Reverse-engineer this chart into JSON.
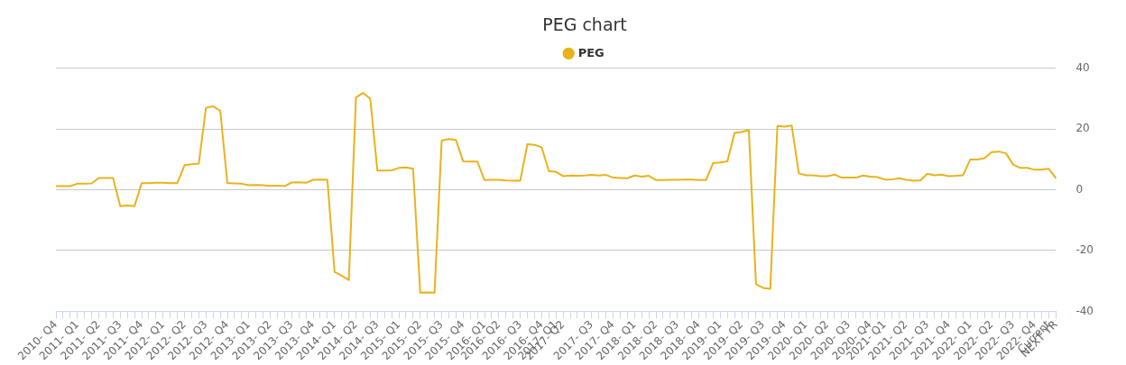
{
  "chart_data": {
    "type": "line",
    "title": "PEG chart",
    "categories": [
      "2010- Q4",
      null,
      null,
      "2011- Q1",
      null,
      null,
      "2011- Q2",
      null,
      null,
      "2011- Q3",
      null,
      null,
      "2011- Q4",
      null,
      null,
      "2012- Q1",
      null,
      null,
      "2012- Q2",
      null,
      null,
      "2012- Q3",
      null,
      null,
      "2012- Q4",
      null,
      null,
      "2013- Q1",
      null,
      null,
      "2013- Q2",
      null,
      null,
      "2013- Q3",
      null,
      null,
      "2013- Q4",
      null,
      null,
      "2014- Q1",
      null,
      null,
      "2014- Q2",
      null,
      null,
      "2014- Q3",
      null,
      null,
      "2015- Q1",
      null,
      null,
      "2015- Q2",
      null,
      null,
      "2015- Q3",
      null,
      null,
      "2015- Q4",
      null,
      null,
      "2016- Q1",
      null,
      "2016- Q2",
      null,
      null,
      "2016- Q3",
      null,
      null,
      "2016- Q4",
      null,
      "2017- Q1",
      "2017- Q2",
      null,
      null,
      null,
      "2017- Q3",
      null,
      null,
      "2017- Q4",
      null,
      null,
      "2018- Q1",
      null,
      null,
      "2018- Q2",
      null,
      null,
      "2018- Q3",
      null,
      null,
      "2018- Q4",
      null,
      null,
      "2019- Q1",
      null,
      null,
      "2019- Q2",
      null,
      null,
      "2019- Q3",
      null,
      null,
      "2019- Q4",
      null,
      null,
      "2020- Q1",
      null,
      null,
      "2020- Q2",
      null,
      null,
      "2020- Q3",
      null,
      null,
      "2020- Q4",
      null,
      "2021- Q1",
      null,
      null,
      "2021- Q2",
      null,
      null,
      "2021- Q3",
      null,
      null,
      "2021- Q4",
      null,
      null,
      "2022- Q1",
      null,
      null,
      "2022- Q2",
      null,
      null,
      "2022- Q3",
      null,
      null,
      "2022- Q4",
      null,
      "Current",
      "NEXT YR"
    ],
    "series": [
      {
        "name": "PEG",
        "color": "#e8b31c",
        "values": [
          1.2,
          1.2,
          1.2,
          2.0,
          2.0,
          2.1,
          3.9,
          3.9,
          3.9,
          -5.4,
          -5.2,
          -5.4,
          2.2,
          2.2,
          2.3,
          2.3,
          2.2,
          2.2,
          8.1,
          8.4,
          8.6,
          27,
          27.5,
          26,
          2.2,
          2.1,
          2.0,
          1.5,
          1.6,
          1.5,
          1.3,
          1.4,
          1.2,
          2.4,
          2.5,
          2.3,
          3.3,
          3.4,
          3.3,
          -27,
          -28.3,
          -29.7,
          30.4,
          31.9,
          30,
          6.3,
          6.3,
          6.4,
          7.2,
          7.4,
          6.9,
          -33.9,
          -33.8,
          -33.9,
          16.2,
          16.7,
          16.4,
          9.4,
          9.3,
          9.3,
          3.2,
          3.3,
          3.3,
          3.1,
          3.0,
          3.0,
          15.0,
          14.8,
          14,
          6.2,
          5.9,
          4.5,
          4.7,
          4.6,
          4.7,
          4.9,
          4.7,
          4.9,
          4.0,
          3.9,
          3.8,
          4.7,
          4.3,
          4.6,
          3.2,
          3.2,
          3.3,
          3.3,
          3.4,
          3.4,
          3.2,
          3.2,
          8.8,
          9.0,
          9.4,
          18.7,
          19.0,
          19.7,
          -31.1,
          -32.3,
          -32.6,
          21.0,
          20.8,
          21.2,
          5.4,
          4.8,
          4.8,
          4.5,
          4.5,
          5.0,
          4.0,
          4.0,
          4.0,
          4.7,
          4.3,
          4.2,
          3.4,
          3.4,
          3.8,
          3.3,
          3.0,
          3.1,
          5.3,
          4.8,
          5.0,
          4.5,
          4.6,
          4.8,
          10.0,
          10.0,
          10.4,
          12.4,
          12.6,
          12.0,
          8.3,
          7.2,
          7.2,
          6.6,
          6.6,
          6.9,
          3.8
        ]
      }
    ],
    "ylim": [
      -40,
      40
    ],
    "yticks": [
      -40,
      -20,
      0,
      20,
      40
    ],
    "grid": "y",
    "legend": "top",
    "marker": "none",
    "line_style": "solid"
  }
}
